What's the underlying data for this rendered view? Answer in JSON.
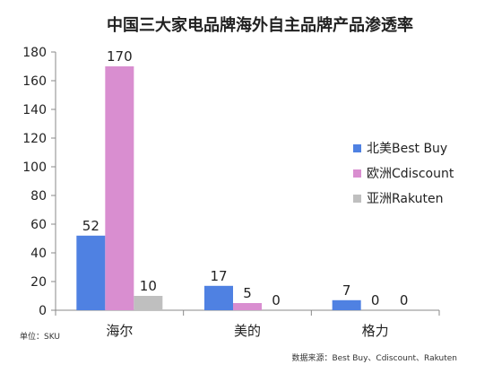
{
  "chart_data": {
    "type": "bar",
    "title": "中国三大家电品牌海外自主品牌产品渗透率",
    "categories": [
      "海尔",
      "美的",
      "格力"
    ],
    "series": [
      {
        "name": "北美Best Buy",
        "values": [
          52,
          17,
          7
        ],
        "color": "#4f81e2"
      },
      {
        "name": "欧洲Cdiscount",
        "values": [
          170,
          5,
          0
        ],
        "color": "#d98ed0"
      },
      {
        "name": "亚洲Rakuten",
        "values": [
          10,
          0,
          0
        ],
        "color": "#bfbfbf"
      }
    ],
    "yticks": [
      0,
      20,
      40,
      60,
      80,
      100,
      120,
      140,
      160,
      180
    ],
    "ylim": [
      0,
      180
    ],
    "grid": false,
    "legend_position": "right",
    "unit_note": "单位：SKU",
    "source_note": "数据来源：Best Buy、Cdiscount、Rakuten"
  }
}
